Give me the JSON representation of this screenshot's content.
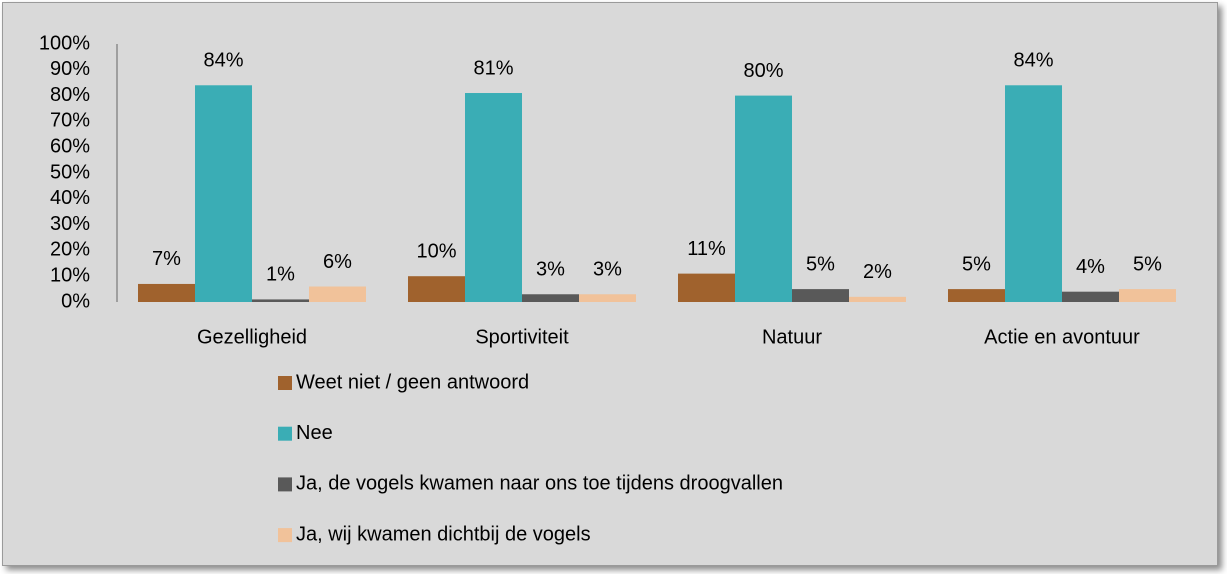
{
  "chart_data": {
    "type": "bar",
    "categories": [
      "Gezelligheid",
      "Sportiviteit",
      "Natuur",
      "Actie en avontuur"
    ],
    "series": [
      {
        "name": "Weet niet / geen antwoord",
        "color": "#a0622d",
        "values": [
          7,
          10,
          11,
          5
        ],
        "value_labels": [
          "7%",
          "10%",
          "11%",
          "5%"
        ]
      },
      {
        "name": "Nee",
        "color": "#3aadb5",
        "values": [
          84,
          81,
          80,
          84
        ],
        "value_labels": [
          "84%",
          "81%",
          "80%",
          "84%"
        ]
      },
      {
        "name": "Ja, de vogels kwamen naar ons toe tijdens droogvallen",
        "color": "#595959",
        "values": [
          1,
          3,
          5,
          4
        ],
        "value_labels": [
          "1%",
          "3%",
          "5%",
          "4%"
        ]
      },
      {
        "name": "Ja, wij kwamen dichtbij de vogels",
        "color": "#f1c29a",
        "values": [
          6,
          3,
          2,
          5
        ],
        "value_labels": [
          "6%",
          "3%",
          "2%",
          "5%"
        ]
      }
    ],
    "ylim": [
      0,
      100
    ],
    "yticks": [
      {
        "value": 0,
        "label": "0%"
      },
      {
        "value": 10,
        "label": "10%"
      },
      {
        "value": 20,
        "label": "20%"
      },
      {
        "value": 30,
        "label": "30%"
      },
      {
        "value": 40,
        "label": "40%"
      },
      {
        "value": 50,
        "label": "50%"
      },
      {
        "value": 60,
        "label": "60%"
      },
      {
        "value": 70,
        "label": "70%"
      },
      {
        "value": 80,
        "label": "80%"
      },
      {
        "value": 90,
        "label": "90%"
      },
      {
        "value": 100,
        "label": "100%"
      }
    ],
    "grid": false,
    "legend": "bottom"
  }
}
